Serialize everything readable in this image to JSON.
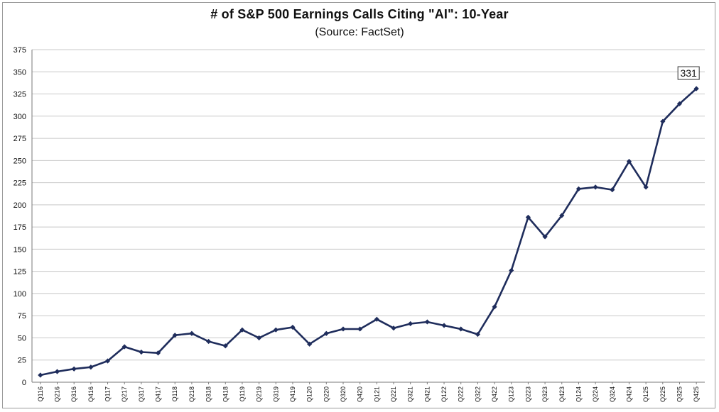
{
  "chart_data": {
    "type": "line",
    "title": "# of S&P 500 Earnings Calls Citing \"AI\": 10-Year",
    "subtitle": "(Source: FactSet)",
    "xlabel": "",
    "ylabel": "",
    "ylim": [
      0,
      375
    ],
    "yticks": [
      0,
      25,
      50,
      75,
      100,
      125,
      150,
      175,
      200,
      225,
      250,
      275,
      300,
      325,
      350,
      375
    ],
    "grid": true,
    "legend": "none",
    "line_color": "#1f2d5c",
    "categories": [
      "Q116",
      "Q216",
      "Q316",
      "Q416",
      "Q117",
      "Q217",
      "Q317",
      "Q417",
      "Q118",
      "Q218",
      "Q318",
      "Q418",
      "Q119",
      "Q219",
      "Q319",
      "Q419",
      "Q120",
      "Q220",
      "Q320",
      "Q420",
      "Q121",
      "Q221",
      "Q321",
      "Q421",
      "Q122",
      "Q222",
      "Q322",
      "Q422",
      "Q123",
      "Q223",
      "Q323",
      "Q423",
      "Q124",
      "Q224",
      "Q324",
      "Q424",
      "Q125",
      "Q225",
      "Q325",
      "Q425"
    ],
    "values": [
      8,
      12,
      15,
      17,
      24,
      40,
      34,
      33,
      53,
      55,
      46,
      41,
      59,
      50,
      59,
      62,
      43,
      55,
      60,
      60,
      71,
      61,
      66,
      68,
      64,
      60,
      54,
      85,
      126,
      186,
      164,
      188,
      218,
      220,
      217,
      249,
      220,
      294,
      314,
      331
    ],
    "annotations": [
      {
        "category": "Q425",
        "label": "331"
      }
    ]
  }
}
